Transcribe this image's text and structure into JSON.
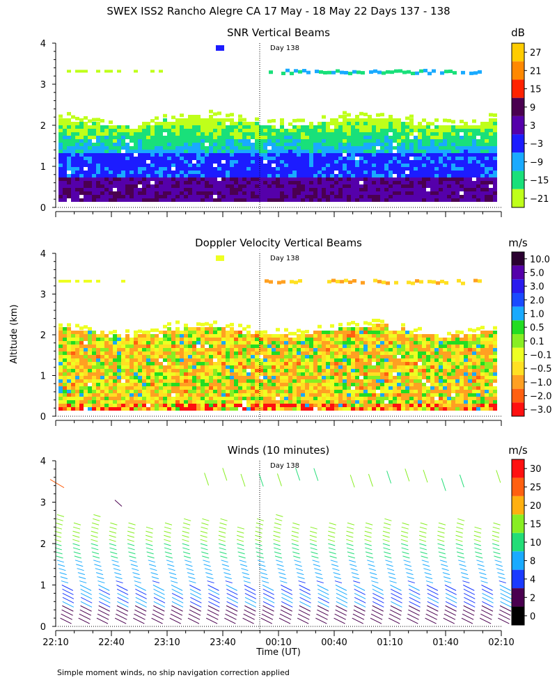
{
  "page": {
    "title": "SWEX ISS2 Rancho Alegre CA  17 May - 18 May 22 Days 137 - 138",
    "ylabel": "Altitude (km)",
    "xlabel": "Time (UT)",
    "footnote": "Simple moment winds, no ship navigation correction applied",
    "day_marker": "Day 138"
  },
  "chart_data": [
    {
      "type": "heatmap",
      "title": "SNR Vertical Beams",
      "ylabel": "Altitude (km)",
      "ylim": [
        0,
        4
      ],
      "y_ticks": [
        "0",
        "1",
        "2",
        "3",
        "4"
      ],
      "colorbar": {
        "unit": "dB",
        "labels": [
          "27",
          "21",
          "15",
          "9",
          "3",
          "−3",
          "−9",
          "−15",
          "−21"
        ],
        "colors": [
          "#ffcc00",
          "#ff8800",
          "#ff2200",
          "#4a0050",
          "#5500aa",
          "#1c1cff",
          "#19aaff",
          "#19e07a",
          "#bfff1a"
        ]
      },
      "summary": "Continuous echo from ~0.15 to ~2.1 km, strongest (9-15 dB) below 0.7 km; patchy layer near 3.3-3.4 km after Day 138 boundary."
    },
    {
      "type": "heatmap",
      "title": "Doppler Velocity Vertical Beams",
      "ylabel": "Altitude (km)",
      "ylim": [
        0,
        4
      ],
      "y_ticks": [
        "0",
        "1",
        "2",
        "3",
        "4"
      ],
      "colorbar": {
        "unit": "m/s",
        "labels": [
          "10.0",
          "5.0",
          "3.0",
          "2.0",
          "1.0",
          "0.5",
          "0.1",
          "−0.1",
          "−0.5",
          "−1.0",
          "−2.0",
          "−3.0"
        ],
        "colors": [
          "#2a0030",
          "#5500aa",
          "#2a1aee",
          "#1a4aff",
          "#19aaff",
          "#22dd22",
          "#88ee22",
          "#eeff22",
          "#ffe022",
          "#ffa022",
          "#ff6010",
          "#ff1010"
        ]
      },
      "summary": "Mostly weak downward motion (-0.1 to -1.0 m/s) between ~0.2 and ~2.1 km, with scattered upward cells near 0.5-1.5 km."
    },
    {
      "type": "scatter",
      "title": "Winds (10 minutes)",
      "ylabel": "Altitude (km)",
      "xlabel": "Time (UT)",
      "ylim": [
        0,
        4
      ],
      "y_ticks": [
        "0",
        "1",
        "2",
        "3",
        "4"
      ],
      "x_ticks": [
        "22:10",
        "22:40",
        "23:10",
        "23:40",
        "00:10",
        "00:40",
        "01:10",
        "01:40",
        "02:10"
      ],
      "colorbar": {
        "unit": "m/s",
        "labels": [
          "30",
          "25",
          "20",
          "15",
          "10",
          "8",
          "4",
          "2",
          "0"
        ],
        "colors": [
          "#ff1010",
          "#ff6010",
          "#ffb010",
          "#88ee22",
          "#22dd77",
          "#19aaff",
          "#1a3aff",
          "#4a0050",
          "#000000"
        ]
      },
      "profile_times": [
        "22:10",
        "22:20",
        "22:30",
        "22:40",
        "22:50",
        "23:00",
        "23:10",
        "23:20",
        "23:30",
        "23:40",
        "23:50",
        "00:00",
        "00:10",
        "00:20",
        "00:30",
        "00:40",
        "00:50",
        "01:00",
        "01:10",
        "01:20",
        "01:30",
        "01:40",
        "01:50",
        "02:00",
        "02:10"
      ],
      "summary": "Wind barbs every 10 minutes from ~0.2 to ~2.7 km; speeds 2-8 m/s near surface increasing to 10-15 m/s aloft; sparse upper layer near 3.3-3.8 km."
    }
  ]
}
